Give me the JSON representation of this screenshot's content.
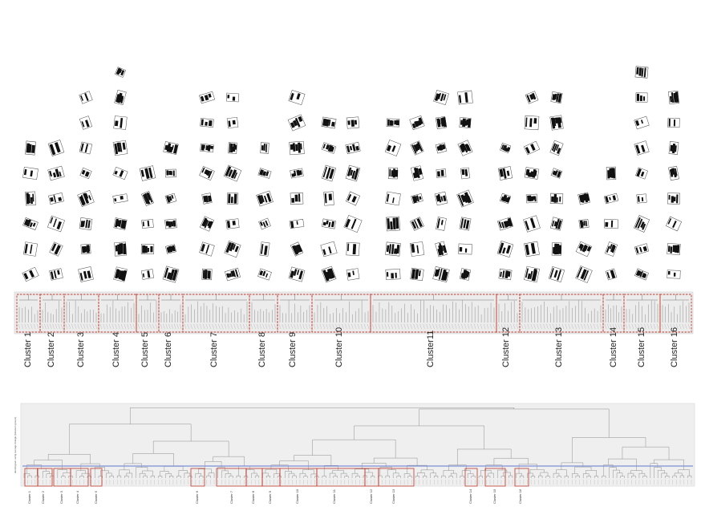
{
  "top_panel": {
    "clusters": [
      {
        "label": "Cluster 1",
        "count": 6
      },
      {
        "label": "Cluster 2",
        "count": 6
      },
      {
        "label": "Cluster 3",
        "count": 8
      },
      {
        "label": "Cluster 4",
        "count": 9
      },
      {
        "label": "Cluster 5",
        "count": 5
      },
      {
        "label": "Cluster 6",
        "count": 6
      },
      {
        "label": "Cluster 7",
        "count": 14
      },
      {
        "label": "Cluster 8",
        "count": 6
      },
      {
        "label": "Cluster 9",
        "count": 7
      },
      {
        "label": "Cluster 10",
        "count": 12
      },
      {
        "label": "Cluster11",
        "count": 28
      },
      {
        "label": "Cluster 12",
        "count": 6
      },
      {
        "label": "Cluster 13",
        "count": 15
      },
      {
        "label": "Cluster 14",
        "count": 5
      },
      {
        "label": "Cluster 15",
        "count": 9
      },
      {
        "label": "Cluster 16",
        "count": 8
      }
    ]
  },
  "bottom_panel": {
    "y_axis_title": "dendrogram using average linkage (between groups)",
    "threshold_color": "#7f8fd8",
    "clusters": [
      {
        "label": "Cluster 1"
      },
      {
        "label": "Cluster 2"
      },
      {
        "label": "Cluster 3"
      },
      {
        "label": "Cluster 4"
      },
      {
        "label": "Cluster 5"
      },
      {
        "label": "Cluster 6"
      },
      {
        "label": "Cluster 7"
      },
      {
        "label": "Cluster 8"
      },
      {
        "label": "Cluster 9"
      },
      {
        "label": "Cluster 10"
      },
      {
        "label": "Cluster 11"
      },
      {
        "label": "Cluster 12"
      },
      {
        "label": "Cluster 13"
      },
      {
        "label": "Cluster 14"
      },
      {
        "label": "Cluster 15"
      },
      {
        "label": "Cluster 16"
      }
    ]
  },
  "colors": {
    "cluster_box": "#c0392b",
    "panel_bg": "#efefef",
    "lines": "#777777",
    "building": "#111111"
  }
}
